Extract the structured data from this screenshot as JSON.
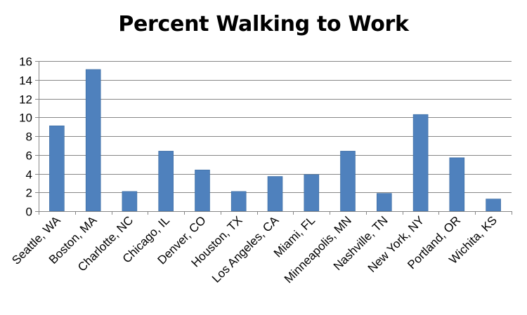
{
  "chart_data": {
    "type": "bar",
    "title": "Percent Walking to Work",
    "xlabel": "",
    "ylabel": "",
    "categories": [
      "Seattle, WA",
      "Boston, MA",
      "Charlotte, NC",
      "Chicago, IL",
      "Denver, CO",
      "Houston, TX",
      "Los Angeles, CA",
      "Miami, FL",
      "Minneapolis, MN",
      "Nashville, TN",
      "New York, NY",
      "Portland, OR",
      "Wichita, KS"
    ],
    "values": [
      9.1,
      15.1,
      2.1,
      6.4,
      4.4,
      2.1,
      3.7,
      3.9,
      6.4,
      1.9,
      10.3,
      5.7,
      1.3
    ],
    "ylim": [
      0,
      16
    ],
    "yticks": [
      0,
      2,
      4,
      6,
      8,
      10,
      12,
      14,
      16
    ],
    "ytick_labels": [
      "0",
      "2",
      "4",
      "6",
      "8",
      "10",
      "12",
      "14",
      "16"
    ],
    "grid": true,
    "legend": "none",
    "colors": {
      "bar": "#4F81BD",
      "bar_edge": "#3A6A9F",
      "grid": "#868686",
      "axis": "#868686"
    }
  }
}
